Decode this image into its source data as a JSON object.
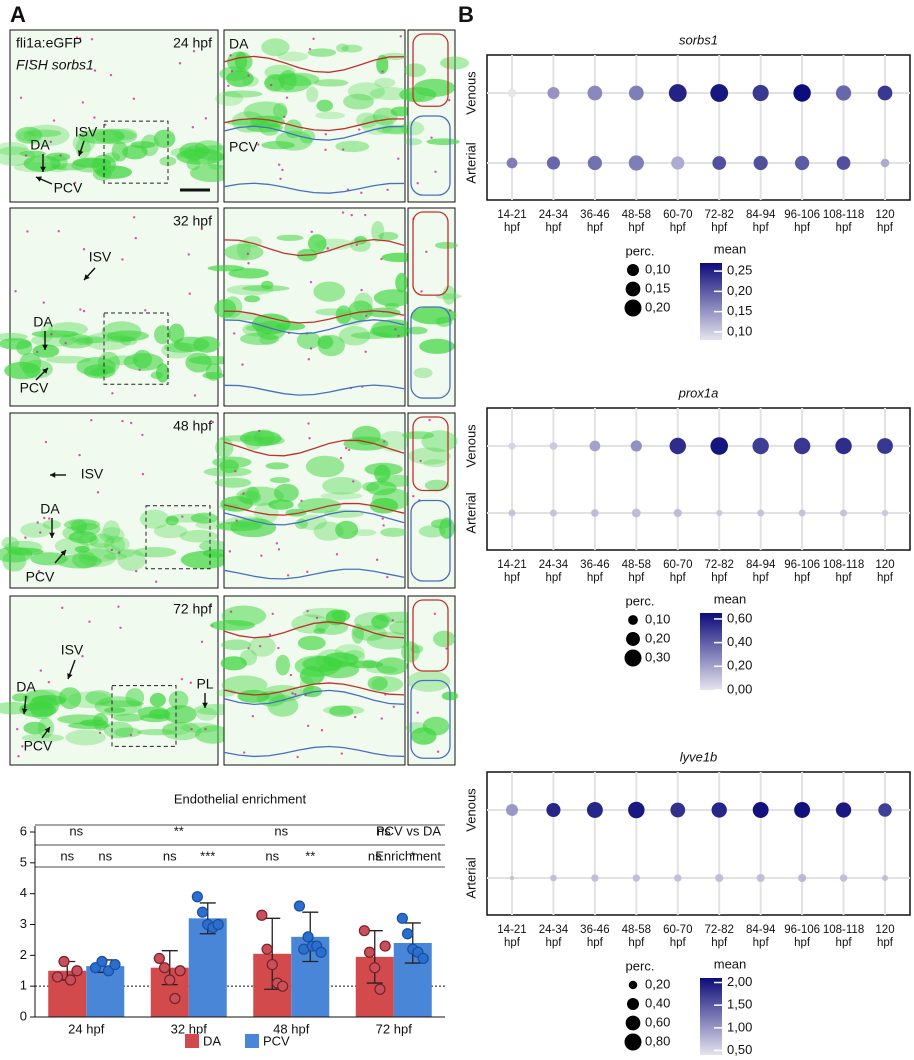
{
  "panel_labels": [
    "A",
    "B"
  ],
  "microscopy": {
    "channel_labels": [
      "fli1a:eGFP",
      "FISH sorbs1"
    ],
    "rows": [
      {
        "time": "24 hpf",
        "labels": [
          "DA",
          "ISV",
          "PCV"
        ],
        "zoom_labels": [
          "DA",
          "PCV"
        ]
      },
      {
        "time": "32 hpf",
        "labels": [
          "ISV",
          "DA",
          "PCV"
        ]
      },
      {
        "time": "48 hpf",
        "labels": [
          "ISV",
          "DA",
          "PCV"
        ]
      },
      {
        "time": "72 hpf",
        "labels": [
          "ISV",
          "DA",
          "PL",
          "PCV"
        ]
      }
    ]
  },
  "chart_data": [
    {
      "type": "bar",
      "title": "Endothelial enrichment",
      "categories": [
        "24 hpf",
        "32 hpf",
        "48 hpf",
        "72 hpf"
      ],
      "series": [
        {
          "name": "DA",
          "color": "#d24a4c",
          "point_color": "#c8505a",
          "values": [
            1.5,
            1.6,
            2.05,
            1.95
          ],
          "errors": [
            0.3,
            0.55,
            1.15,
            0.85
          ],
          "points": [
            [
              1.3,
              1.8,
              1.2,
              1.5
            ],
            [
              1.9,
              1.6,
              1.2,
              0.6,
              1.5
            ],
            [
              3.3,
              2.2,
              1.7,
              1.1,
              1.0
            ],
            [
              2.8,
              2.1,
              1.6,
              0.9,
              2.3
            ]
          ]
        },
        {
          "name": "PCV",
          "color": "#4a86d8",
          "point_color": "#2a6fd0",
          "values": [
            1.65,
            3.2,
            2.6,
            2.4
          ],
          "errors": [
            0.2,
            0.5,
            0.8,
            0.65
          ],
          "points": [
            [
              1.6,
              1.8,
              1.5,
              1.7
            ],
            [
              3.9,
              3.4,
              3.0,
              2.9,
              3.0
            ],
            [
              3.6,
              2.2,
              2.6,
              2.3,
              2.3,
              2.1
            ],
            [
              3.2,
              2.7,
              2.2,
              2.1,
              1.9
            ]
          ]
        }
      ],
      "ylim": [
        0,
        6
      ],
      "yticks": [
        0,
        1,
        2,
        3,
        4,
        5,
        6
      ],
      "reference_line": 1,
      "comparisons": [
        {
          "name": "PCV vs DA",
          "labels": [
            "ns",
            "**",
            "ns",
            "ns"
          ]
        },
        {
          "name": "Enrichment",
          "labels": [
            "ns",
            "ns",
            "ns",
            "***",
            "ns",
            "**",
            "ns",
            "*"
          ]
        }
      ]
    },
    {
      "type": "dot",
      "title": "sorbs1",
      "rows": [
        "Venous",
        "Arterial"
      ],
      "row_colors": [
        "#4a7fc0",
        "#d03030"
      ],
      "categories": [
        "14-21 hpf",
        "24-34 hpf",
        "36-46 hpf",
        "48-58 hpf",
        "60-70 hpf",
        "72-82 hpf",
        "84-94 hpf",
        "96-106 hpf",
        "108-118 hpf",
        "120 hpf"
      ],
      "sizes": [
        [
          0.05,
          0.1,
          0.15,
          0.15,
          0.22,
          0.22,
          0.18,
          0.21,
          0.16,
          0.15
        ],
        [
          0.08,
          0.12,
          0.14,
          0.16,
          0.12,
          0.13,
          0.14,
          0.14,
          0.13,
          0.05
        ]
      ],
      "means": [
        [
          0.08,
          0.15,
          0.16,
          0.17,
          0.25,
          0.26,
          0.23,
          0.27,
          0.19,
          0.23
        ],
        [
          0.17,
          0.19,
          0.18,
          0.17,
          0.13,
          0.21,
          0.21,
          0.2,
          0.21,
          0.13
        ]
      ],
      "size_legend": {
        "title": "perc.",
        "values": [
          {
            "value": 0.1,
            "label": "0,10"
          },
          {
            "value": 0.15,
            "label": "0,15"
          },
          {
            "value": 0.2,
            "label": "0,20"
          }
        ]
      },
      "color_legend": {
        "title": "mean",
        "lim": [
          0.08,
          0.27
        ],
        "ticks": [
          {
            "value": 0.25,
            "label": "0,25"
          },
          {
            "value": 0.2,
            "label": "0,20"
          },
          {
            "value": 0.15,
            "label": "0,15"
          },
          {
            "value": 0.1,
            "label": "0,10"
          }
        ]
      },
      "colormap": [
        "#e6e4ee",
        "#0c0c7a"
      ]
    },
    {
      "type": "dot",
      "title": "prox1a",
      "rows": [
        "Venous",
        "Arterial"
      ],
      "row_colors": [
        "#4a7fc0",
        "#d03030"
      ],
      "categories": [
        "14-21 hpf",
        "24-34 hpf",
        "36-46 hpf",
        "48-58 hpf",
        "60-70 hpf",
        "72-82 hpf",
        "84-94 hpf",
        "96-106 hpf",
        "108-118 hpf",
        "120 hpf"
      ],
      "sizes": [
        [
          0.05,
          0.06,
          0.12,
          0.13,
          0.28,
          0.32,
          0.28,
          0.28,
          0.28,
          0.26
        ],
        [
          0.05,
          0.05,
          0.06,
          0.08,
          0.07,
          0.04,
          0.05,
          0.05,
          0.05,
          0.04
        ]
      ],
      "means": [
        [
          0.05,
          0.08,
          0.2,
          0.25,
          0.55,
          0.62,
          0.5,
          0.52,
          0.55,
          0.52
        ],
        [
          0.1,
          0.1,
          0.12,
          0.12,
          0.12,
          0.08,
          0.1,
          0.1,
          0.1,
          0.08
        ]
      ],
      "size_legend": {
        "title": "perc.",
        "values": [
          {
            "value": 0.1,
            "label": "0,10"
          },
          {
            "value": 0.2,
            "label": "0,20"
          },
          {
            "value": 0.3,
            "label": "0,30"
          }
        ]
      },
      "color_legend": {
        "title": "mean",
        "lim": [
          0,
          0.65
        ],
        "ticks": [
          {
            "value": 0.6,
            "label": "0,60"
          },
          {
            "value": 0.4,
            "label": "0,40"
          },
          {
            "value": 0.2,
            "label": "0,20"
          },
          {
            "value": 0.0,
            "label": "0,00"
          }
        ]
      },
      "colormap": [
        "#e6e4ee",
        "#0c0c7a"
      ]
    },
    {
      "type": "dot",
      "title": "lyve1b",
      "rows": [
        "Venous",
        "Arterial"
      ],
      "row_colors": [
        "#4a7fc0",
        "#d03030"
      ],
      "categories": [
        "14-21 hpf",
        "24-34 hpf",
        "36-46 hpf",
        "48-58 hpf",
        "60-70 hpf",
        "72-82 hpf",
        "84-94 hpf",
        "96-106 hpf",
        "108-118 hpf",
        "120 hpf"
      ],
      "sizes": [
        [
          0.4,
          0.55,
          0.7,
          0.75,
          0.6,
          0.65,
          0.7,
          0.7,
          0.65,
          0.5
        ],
        [
          0.05,
          0.12,
          0.15,
          0.15,
          0.15,
          0.18,
          0.18,
          0.18,
          0.15,
          0.1
        ]
      ],
      "means": [
        [
          1.0,
          1.9,
          1.9,
          2.0,
          1.8,
          1.9,
          2.05,
          2.05,
          2.0,
          1.7
        ],
        [
          0.7,
          0.7,
          0.7,
          0.7,
          0.7,
          0.7,
          0.7,
          0.75,
          0.7,
          0.7
        ]
      ],
      "size_legend": {
        "title": "perc.",
        "values": [
          {
            "value": 0.2,
            "label": "0,20"
          },
          {
            "value": 0.4,
            "label": "0,40"
          },
          {
            "value": 0.6,
            "label": "0,60"
          },
          {
            "value": 0.8,
            "label": "0,80"
          }
        ]
      },
      "color_legend": {
        "title": "mean",
        "lim": [
          0.4,
          2.1
        ],
        "ticks": [
          {
            "value": 2.0,
            "label": "2,00"
          },
          {
            "value": 1.5,
            "label": "1,50"
          },
          {
            "value": 1.0,
            "label": "1,00"
          },
          {
            "value": 0.5,
            "label": "0,50"
          }
        ]
      },
      "colormap": [
        "#e6e4ee",
        "#0c0c7a"
      ]
    }
  ]
}
